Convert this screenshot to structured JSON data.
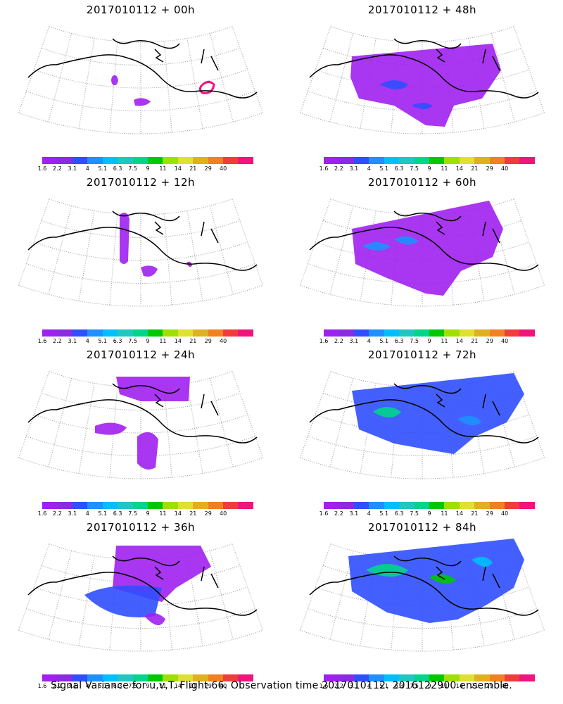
{
  "panels": [
    {
      "title": "2017010112 + 00h"
    },
    {
      "title": "2017010112 + 48h"
    },
    {
      "title": "2017010112 + 12h"
    },
    {
      "title": "2017010112 + 60h"
    },
    {
      "title": "2017010112 + 24h"
    },
    {
      "title": "2017010112 + 72h"
    },
    {
      "title": "2017010112 + 36h"
    },
    {
      "title": "2017010112 + 84h"
    }
  ],
  "colorbar": {
    "labels": [
      "1.6",
      "2.2",
      "3.1",
      "4",
      "5.1",
      "6.3",
      "7.5",
      "9",
      "11",
      "14",
      "21",
      "29",
      "40"
    ],
    "colors": [
      "#a020f0",
      "#8a2be2",
      "#2f4fff",
      "#1e90ff",
      "#00bfff",
      "#20c6c0",
      "#00d58a",
      "#00c800",
      "#a0e000",
      "#e0e030",
      "#e0b020",
      "#f08020",
      "#f03c3c",
      "#f0147c"
    ]
  },
  "caption": "Signal Variance for u,v,T. Flight 66. Observation time 2017010112. 2016122900 ensemble."
}
